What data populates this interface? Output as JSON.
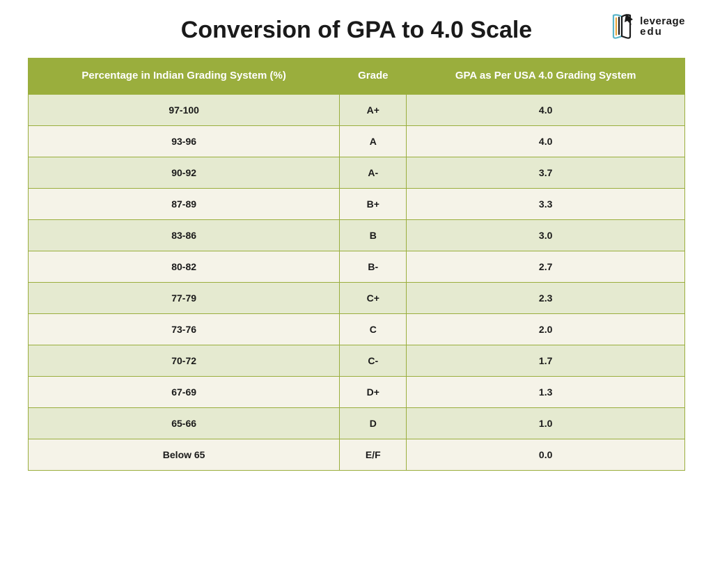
{
  "title": "Conversion of GPA to 4.0 Scale",
  "logo": {
    "line1": "leverage",
    "line2": "edu"
  },
  "table": {
    "header_bg": "#9aae3d",
    "header_text_color": "#ffffff",
    "row_odd_bg": "#e5ead0",
    "row_even_bg": "#f5f3e8",
    "border_color": "#9aae3d",
    "title_fontsize": 34,
    "header_fontsize": 15,
    "cell_fontsize": 14,
    "columns": [
      "Percentage in Indian Grading System (%)",
      "Grade",
      "GPA as Per USA 4.0 Grading System"
    ],
    "rows": [
      [
        "97-100",
        "A+",
        "4.0"
      ],
      [
        "93-96",
        "A",
        "4.0"
      ],
      [
        "90-92",
        "A-",
        "3.7"
      ],
      [
        "87-89",
        "B+",
        "3.3"
      ],
      [
        "83-86",
        "B",
        "3.0"
      ],
      [
        "80-82",
        "B-",
        "2.7"
      ],
      [
        "77-79",
        "C+",
        "2.3"
      ],
      [
        "73-76",
        "C",
        "2.0"
      ],
      [
        "70-72",
        "C-",
        "1.7"
      ],
      [
        "67-69",
        "D+",
        "1.3"
      ],
      [
        "65-66",
        "D",
        "1.0"
      ],
      [
        "Below 65",
        "E/F",
        "0.0"
      ]
    ]
  }
}
